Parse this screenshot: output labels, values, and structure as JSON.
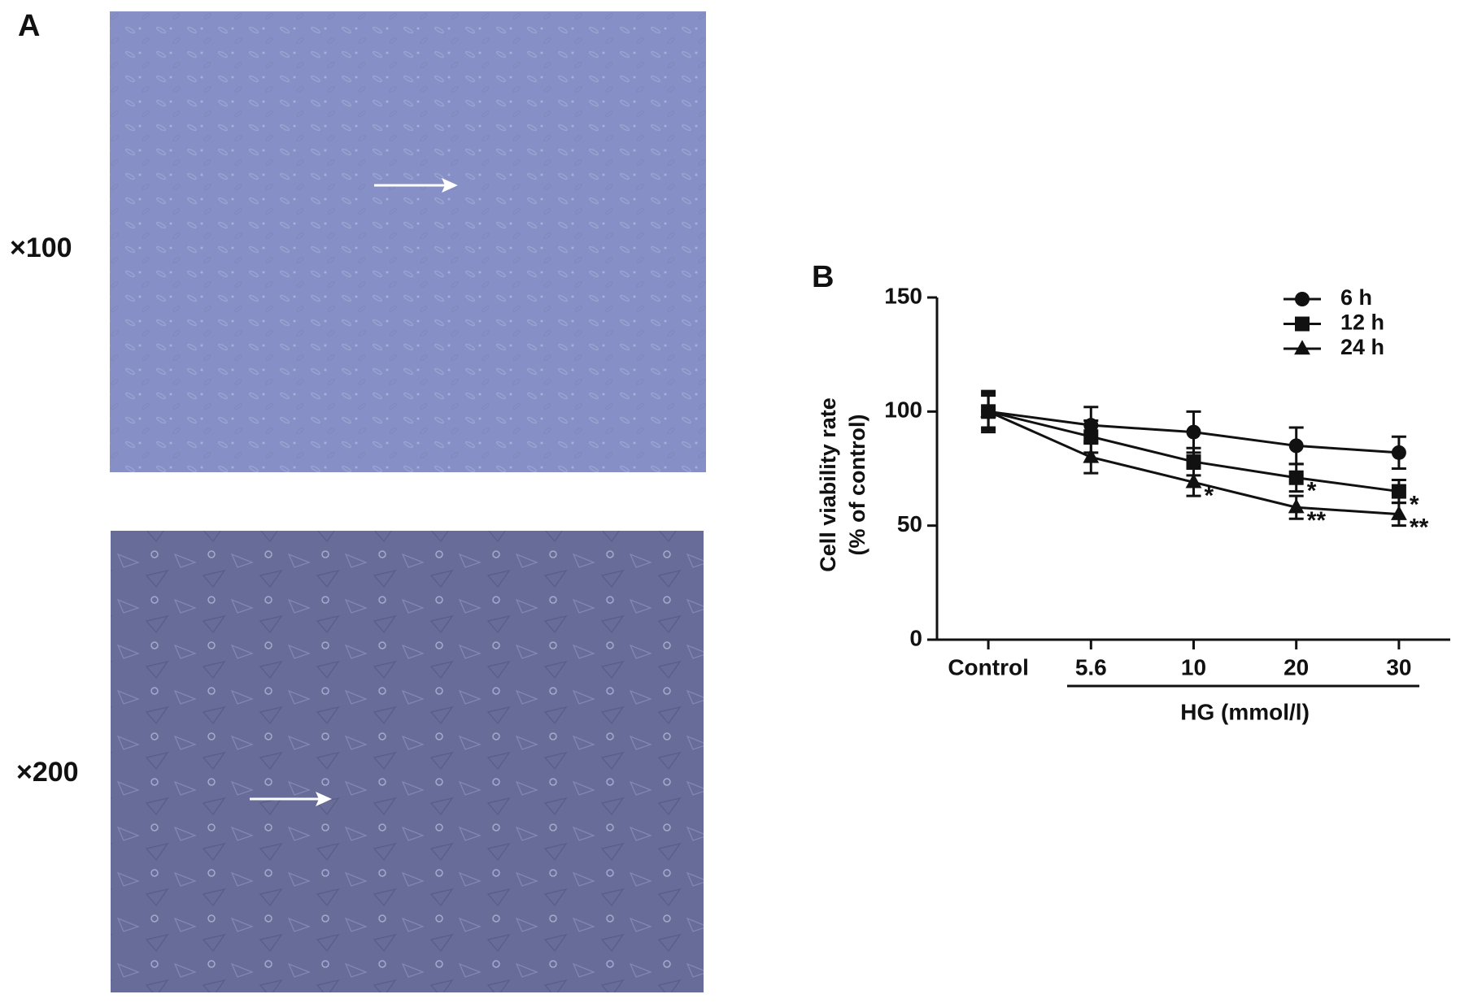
{
  "panel_a": {
    "label": "A",
    "top_label": "×100",
    "bottom_label": "×200"
  },
  "chart_data": {
    "type": "line",
    "panel_label": "B",
    "categories": [
      "Control",
      "5.6",
      "10",
      "20",
      "30"
    ],
    "xlabel": "HG (mmol/l)",
    "ylabel": [
      "Cell viability rate",
      "(% of control)"
    ],
    "ylim": [
      0,
      150
    ],
    "yticks": [
      0,
      50,
      100,
      150
    ],
    "legend": "upper right",
    "series": [
      {
        "name": "6 h",
        "color": "#111111",
        "marker": "circle",
        "values": [
          100,
          94,
          91,
          85,
          82
        ],
        "errors": [
          9,
          8,
          9,
          8,
          7
        ],
        "annotations": [
          null,
          null,
          null,
          null,
          null
        ]
      },
      {
        "name": "12 h",
        "color": "#111111",
        "marker": "square",
        "values": [
          100,
          89,
          78,
          71,
          65
        ],
        "errors": [
          8,
          7,
          6,
          6,
          5
        ],
        "annotations": [
          null,
          null,
          null,
          "*",
          "*"
        ]
      },
      {
        "name": "24 h",
        "color": "#111111",
        "marker": "triangle",
        "values": [
          100,
          80,
          69,
          58,
          55
        ],
        "errors": [
          7,
          7,
          6,
          5,
          5
        ],
        "annotations": [
          null,
          null,
          "*",
          "**",
          "**"
        ]
      }
    ]
  }
}
